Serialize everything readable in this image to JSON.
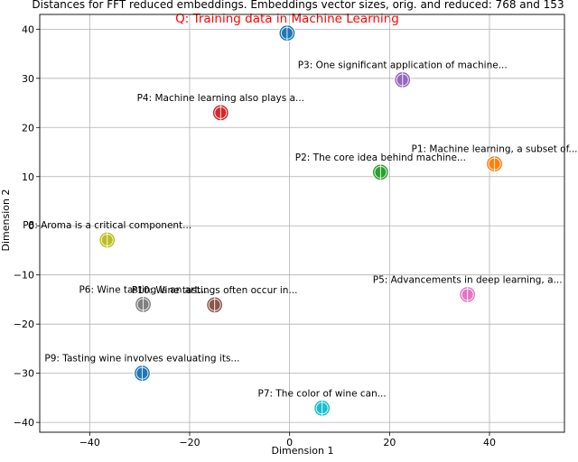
{
  "chart_data": {
    "type": "scatter",
    "title": "Distances for FFT reduced embeddings. Embeddings vector sizes, orig. and reduced: 768 and 153",
    "subtitle": "Q: Training data in Machine Learning",
    "xlabel": "Dimension 1",
    "ylabel": "Dimension 2",
    "xlim": [
      -50,
      55
    ],
    "ylim": [
      -42,
      43
    ],
    "xticks": [
      -40,
      -20,
      0,
      20,
      40
    ],
    "yticks": [
      -40,
      -30,
      -20,
      -10,
      0,
      10,
      20,
      30,
      40
    ],
    "xtick_labels": [
      "−40",
      "−20",
      "0",
      "20",
      "40"
    ],
    "ytick_labels": [
      "−40",
      "−30",
      "−20",
      "−10",
      "0",
      "10",
      "20",
      "30",
      "40"
    ],
    "grid": true,
    "points": [
      {
        "label": "",
        "x": -0.5,
        "y": 39.2,
        "color": "#1f77b4"
      },
      {
        "label": "P1: Machine learning, a subset of...",
        "x": 41.0,
        "y": 12.6,
        "color": "#ff7f0e"
      },
      {
        "label": "P2: The core idea behind machine...",
        "x": 18.2,
        "y": 10.9,
        "color": "#2ca02c"
      },
      {
        "label": "P3: One significant application of machine...",
        "x": 22.6,
        "y": 29.7,
        "color": "#9467bd"
      },
      {
        "label": "P4: Machine learning also plays a...",
        "x": -13.8,
        "y": 23.0,
        "color": "#d62728"
      },
      {
        "label": "P5: Advancements in deep learning, a...",
        "x": 35.6,
        "y": -14.0,
        "color": "#e377c2"
      },
      {
        "label": "P6: Wine tasting is an art...",
        "x": -29.3,
        "y": -16.0,
        "color": "#7f7f7f"
      },
      {
        "label": "P7: The color of wine can...",
        "x": 6.5,
        "y": -37.1,
        "color": "#17becf"
      },
      {
        "label": "P8: Aroma is a critical component...",
        "x": -36.5,
        "y": -2.9,
        "color": "#bcbd22"
      },
      {
        "label": "P9: Tasting wine involves evaluating its...",
        "x": -29.5,
        "y": -30.0,
        "color": "#1f77b4"
      },
      {
        "label": "P10: Wine tastings often occur in...",
        "x": -15.0,
        "y": -16.1,
        "color": "#8c564b"
      }
    ]
  }
}
